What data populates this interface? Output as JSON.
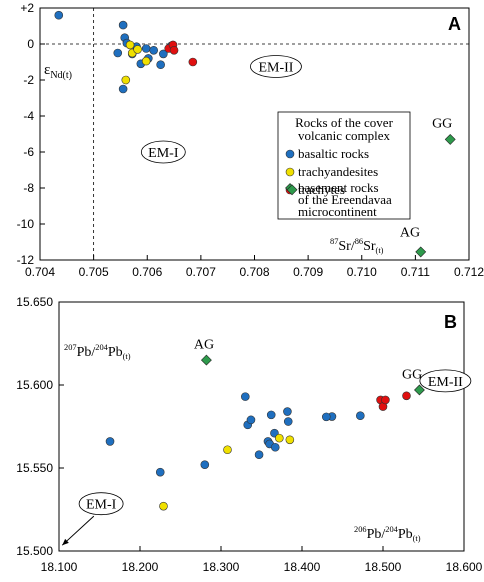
{
  "chart_data": [
    {
      "panel": "A",
      "type": "scatter",
      "xlim": [
        0.704,
        0.712
      ],
      "ylim": [
        -12,
        2
      ],
      "xticks": [
        "0.704",
        "0.705",
        "0.706",
        "0.707",
        "0.708",
        "0.709",
        "0.710",
        "0.711",
        "0.712"
      ],
      "yticks": [
        "+2",
        "0",
        "-2",
        "-4",
        "-6",
        "-8",
        "-10",
        "-12"
      ],
      "ylabel": {
        "main": "ε",
        "sub": "Nd(t)"
      },
      "xlabel": {
        "sup1": "87",
        "p1": "Sr/",
        "sup2": "86",
        "p2": "Sr",
        "sub": "(t)"
      },
      "reference_lines": {
        "x": 0.705,
        "y": 0
      },
      "legend": {
        "placement": "right",
        "title": [
          "Rocks of the cover",
          "volcanic complex"
        ],
        "items": [
          {
            "label": "basaltic rocks",
            "color": "#1f6fbf",
            "marker": "circle"
          },
          {
            "label": "trachyandesites",
            "color": "#f0e000",
            "marker": "circle"
          },
          {
            "label": "trachytes",
            "color": "#e01010",
            "marker": "circle"
          },
          {
            "label": [
              "basement rocks",
              "of the Ereendavaa",
              "microcontinent"
            ],
            "color": "#2e9a4c",
            "marker": "diamond"
          }
        ]
      },
      "series": [
        {
          "name": "basaltic rocks",
          "color": "#1f6fbf",
          "marker": "circle",
          "points": [
            [
              0.70435,
              1.6
            ],
            [
              0.70555,
              1.05
            ],
            [
              0.70558,
              0.35
            ],
            [
              0.70562,
              0.05
            ],
            [
              0.70545,
              -0.5
            ],
            [
              0.70572,
              -0.55
            ],
            [
              0.7058,
              -0.15
            ],
            [
              0.70588,
              -1.1
            ],
            [
              0.70598,
              -0.25
            ],
            [
              0.70602,
              -0.8
            ],
            [
              0.70612,
              -0.35
            ],
            [
              0.70625,
              -1.15
            ],
            [
              0.7063,
              -0.55
            ],
            [
              0.70645,
              -0.1
            ],
            [
              0.70555,
              -2.5
            ]
          ]
        },
        {
          "name": "trachyandesites",
          "color": "#f0e000",
          "marker": "circle",
          "points": [
            [
              0.70568,
              -0.05
            ],
            [
              0.70572,
              -0.5
            ],
            [
              0.70582,
              -0.3
            ],
            [
              0.70598,
              -0.95
            ],
            [
              0.7056,
              -2.0
            ]
          ]
        },
        {
          "name": "trachytes",
          "color": "#e01010",
          "marker": "circle",
          "points": [
            [
              0.7064,
              -0.25
            ],
            [
              0.70648,
              -0.05
            ],
            [
              0.7065,
              -0.35
            ],
            [
              0.70685,
              -1.0
            ]
          ]
        },
        {
          "name": "basement rocks of the Ereendavaa microcontinent",
          "color": "#2e9a4c",
          "marker": "diamond",
          "points": [
            [
              0.71165,
              -5.3
            ],
            [
              0.7087,
              -8.1
            ],
            [
              0.7111,
              -11.55
            ]
          ]
        }
      ],
      "annotations": [
        {
          "text": "GG",
          "x": 0.7115,
          "y": -4.65,
          "color": "#2e7d3a"
        },
        {
          "text": "AG",
          "x": 0.7109,
          "y": -10.7,
          "color": "#2e7d3a"
        },
        {
          "text": "EM-I",
          "x": 0.7063,
          "y": -6.0,
          "ellipse": true
        },
        {
          "text": "EM-II",
          "x": 0.7084,
          "y": -1.25,
          "ellipse": true
        }
      ]
    },
    {
      "panel": "B",
      "type": "scatter",
      "xlim": [
        18.1,
        18.6
      ],
      "ylim": [
        15.5,
        15.65
      ],
      "xticks": [
        "18.100",
        "18.200",
        "18.300",
        "18.400",
        "18.500",
        "18.600"
      ],
      "yticks": [
        "15.650",
        "15.600",
        "15.550",
        "15.500"
      ],
      "ylabel": {
        "sup1": "207",
        "p1": "Pb/",
        "sup2": "204",
        "p2": "Pb",
        "sub": "(t)"
      },
      "xlabel": {
        "sup1": "206",
        "p1": "Pb/",
        "sup2": "204",
        "p2": "Pb",
        "sub": "(t)"
      },
      "series": [
        {
          "name": "basaltic rocks",
          "color": "#1f6fbf",
          "marker": "circle",
          "points": [
            [
              18.163,
              15.566
            ],
            [
              18.225,
              15.5475
            ],
            [
              18.28,
              15.552
            ],
            [
              18.33,
              15.593
            ],
            [
              18.333,
              15.576
            ],
            [
              18.337,
              15.579
            ],
            [
              18.347,
              15.558
            ],
            [
              18.358,
              15.566
            ],
            [
              18.36,
              15.5645
            ],
            [
              18.362,
              15.582
            ],
            [
              18.366,
              15.571
            ],
            [
              18.367,
              15.5625
            ],
            [
              18.382,
              15.584
            ],
            [
              18.383,
              15.578
            ],
            [
              18.437,
              15.581
            ],
            [
              18.472,
              15.5815
            ],
            [
              18.43,
              15.5808
            ]
          ]
        },
        {
          "name": "trachyandesites",
          "color": "#f0e000",
          "marker": "circle",
          "points": [
            [
              18.229,
              15.527
            ],
            [
              18.308,
              15.561
            ],
            [
              18.372,
              15.568
            ],
            [
              18.385,
              15.567
            ]
          ]
        },
        {
          "name": "trachytes",
          "color": "#e01010",
          "marker": "circle",
          "points": [
            [
              18.497,
              15.591
            ],
            [
              18.5,
              15.587
            ],
            [
              18.503,
              15.591
            ],
            [
              18.529,
              15.5935
            ]
          ]
        },
        {
          "name": "basement rocks",
          "color": "#2e9a4c",
          "marker": "diamond",
          "points": [
            [
              18.282,
              15.615
            ],
            [
              18.545,
              15.597
            ]
          ]
        }
      ],
      "annotations": [
        {
          "text": "AG",
          "x": 18.279,
          "y": 15.622,
          "color": "#2e7d3a"
        },
        {
          "text": "GG",
          "x": 18.536,
          "y": 15.604,
          "color": "#2e7d3a"
        },
        {
          "text": "EM-II",
          "x": 18.577,
          "y": 15.6025,
          "ellipse": true
        },
        {
          "text": "EM-I",
          "x": 18.152,
          "y": 15.5285,
          "ellipse": true
        }
      ],
      "arrow": {
        "from": [
          18.143,
          15.521
        ],
        "to": [
          18.104,
          15.5035
        ]
      }
    }
  ]
}
